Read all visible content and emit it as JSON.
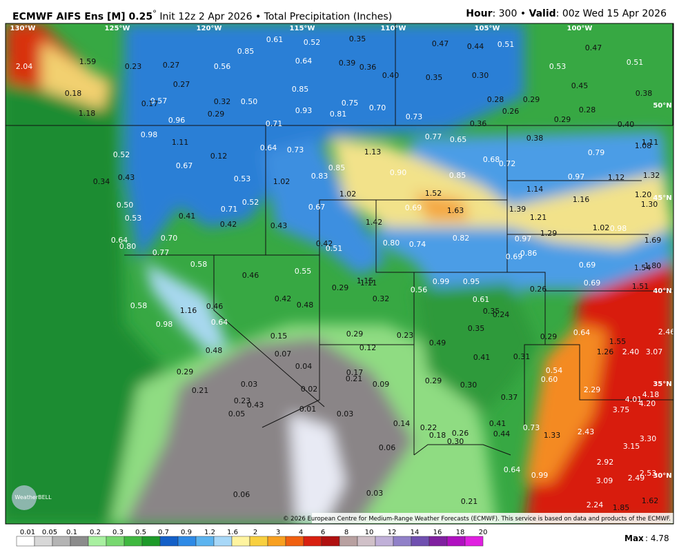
{
  "header": {
    "title": "ECMWF AIFS Ens [M] 0.25",
    "degree": "°",
    "subtitle": "Init 12z 2 Apr 2026 • Total Precipitation (Inches)",
    "hour_label": "Hour",
    "hour_value": ": 300 • ",
    "valid_label": "Valid",
    "valid_value": ": 00z Wed 15 Apr 2026"
  },
  "longitudes": [
    "130°W",
    "125°W",
    "120°W",
    "115°W",
    "110°W",
    "105°W",
    "100°W"
  ],
  "latitudes": [
    "50°N",
    "45°N",
    "40°N",
    "35°N",
    "30°N"
  ],
  "points": [
    "2.04",
    "1.59",
    "0.23",
    "0.27",
    "0.56",
    "0.85",
    "0.61",
    "0.52",
    "0.35",
    "0.47",
    "0.44",
    "0.51",
    "0.47",
    "0.64",
    "0.39",
    "0.36",
    "0.40",
    "0.35",
    "0.30",
    "0.53",
    "0.51",
    "0.27",
    "0.18",
    "0.57",
    "0.32",
    "0.50",
    "0.85",
    "0.75",
    "0.70",
    "0.28",
    "0.29",
    "0.45",
    "0.38",
    "0.17",
    "1.18",
    "0.29",
    "0.93",
    "0.81",
    "0.73",
    "0.26",
    "0.28",
    "0.96",
    "0.71",
    "0.36",
    "0.29",
    "0.40",
    "0.98",
    "1.11",
    "0.38",
    "1.08",
    "1.11",
    "0.77",
    "0.65",
    "0.64",
    "0.73",
    "1.13",
    "0.12",
    "0.52",
    "0.67",
    "0.85",
    "0.68",
    "0.72",
    "0.79",
    "0.43",
    "0.34",
    "0.53",
    "1.02",
    "0.83",
    "0.90",
    "0.85",
    "0.97",
    "1.12",
    "1.32",
    "1.14",
    "1.02",
    "1.52",
    "1.20",
    "1.30",
    "1.16",
    "0.50",
    "0.52",
    "0.71",
    "0.67",
    "0.69",
    "1.63",
    "1.39",
    "0.53",
    "0.41",
    "1.21",
    "1.42",
    "0.42",
    "0.43",
    "1.02",
    "0.98",
    "1.29",
    "0.64",
    "0.70",
    "0.80",
    "0.74",
    "0.82",
    "0.97",
    "1.69",
    "0.80",
    "0.42",
    "0.51",
    "0.77",
    "0.86",
    "0.69",
    "0.58",
    "0.69",
    "1.54",
    "1.80",
    "0.55",
    "0.46",
    "1.15",
    "1.11",
    "0.99",
    "0.95",
    "0.69",
    "1.51",
    "0.29",
    "0.56",
    "0.26",
    "0.42",
    "0.48",
    "0.32",
    "0.61",
    "0.58",
    "0.46",
    "0.35",
    "0.24",
    "1.16",
    "0.64",
    "0.98",
    "2.46",
    "0.35",
    "0.64",
    "0.29",
    "0.23",
    "0.29",
    "0.15",
    "0.49",
    "1.55",
    "0.48",
    "0.12",
    "1.26",
    "2.40",
    "3.07",
    "0.07",
    "0.41",
    "0.31",
    "0.04",
    "0.54",
    "0.60",
    "0.29",
    "0.17",
    "0.21",
    "0.09",
    "0.29",
    "0.30",
    "0.03",
    "0.02",
    "2.29",
    "4.18",
    "4.01",
    "4.20",
    "0.21",
    "0.37",
    "0.23",
    "0.43",
    "0.01",
    "0.03",
    "3.75",
    "0.05",
    "0.14",
    "0.41",
    "0.73",
    "0.22",
    "0.18",
    "0.26",
    "0.44",
    "1.33",
    "2.43",
    "3.30",
    "0.30",
    "3.15",
    "0.06",
    "0.64",
    "0.99",
    "2.92",
    "2.53",
    "2.49",
    "3.09",
    "0.06",
    "0.03",
    "0.21",
    "2.24",
    "1.85",
    "1.62"
  ],
  "logo": "WeatherBELL",
  "copyright": "© 2026 European Centre for Medium-Range Weather Forecasts (ECMWF). This service is based on data and products of the ECMWF.",
  "colorbar_labels": [
    "0.01",
    "0.05",
    "0.1",
    "0.2",
    "0.3",
    "0.5",
    "0.7",
    "0.9",
    "1.2",
    "1.6",
    "2",
    "3",
    "4",
    "6",
    "8",
    "10",
    "12",
    "14",
    "16",
    "18",
    "20"
  ],
  "max_label": "Max",
  "max_value": ": 4.78"
}
